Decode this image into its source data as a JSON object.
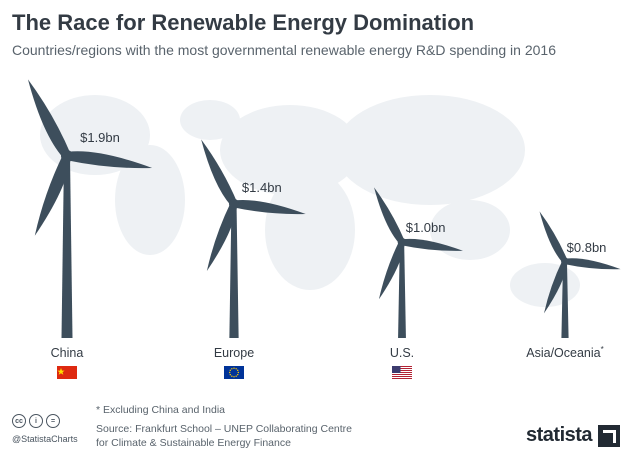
{
  "header": {
    "title": "The Race for Renewable Energy Domination",
    "subtitle": "Countries/regions with the most governmental renewable energy R&D spending in 2016"
  },
  "chart_data": {
    "type": "bar",
    "categories": [
      "China",
      "Europe",
      "U.S.",
      "Asia/Oceania*"
    ],
    "values": [
      1.9,
      1.4,
      1.0,
      0.8
    ],
    "value_labels": [
      "$1.9bn",
      "$1.4bn",
      "$1.0bn",
      "$0.8bn"
    ],
    "unit": "bn USD",
    "title": "The Race for Renewable Energy Domination",
    "subtitle": "Countries/regions with the most governmental renewable energy R&D spending in 2016",
    "xlabel": "",
    "ylabel": "",
    "grid": false,
    "legend": "none",
    "mark": "wind-turbine",
    "colors": {
      "turbine": "#3d4e5c",
      "text": "#333b44",
      "map": "#eef1f4"
    },
    "flags": [
      "china-flag-icon",
      "eu-flag-icon",
      "us-flag-icon",
      ""
    ]
  },
  "footer": {
    "footnote": "* Excluding China and India",
    "source_line1": "Source: Frankfurt School – UNEP Collaborating Centre",
    "source_line2": "for Climate & Sustainable Energy Finance",
    "handle": "@StatistaCharts",
    "logo_text": "statista"
  }
}
